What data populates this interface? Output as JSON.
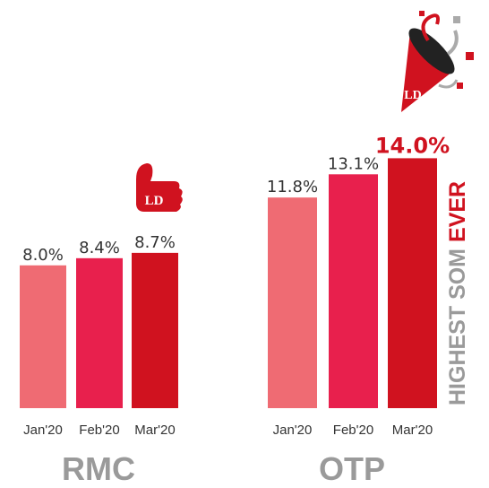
{
  "chart_data": [
    {
      "type": "bar",
      "title": "RMC",
      "categories": [
        "Jan'20",
        "Feb'20",
        "Mar'20"
      ],
      "values": [
        8.0,
        8.4,
        8.7
      ],
      "value_labels": [
        "8.0%",
        "8.4%",
        "8.7%"
      ],
      "colors": [
        "#ef6b73",
        "#e8204d",
        "#d0121f"
      ]
    },
    {
      "type": "bar",
      "title": "OTP",
      "categories": [
        "Jan'20",
        "Feb'20",
        "Mar'20"
      ],
      "values": [
        11.8,
        13.1,
        14.0
      ],
      "value_labels": [
        "11.8%",
        "13.1%",
        "14.0%"
      ],
      "colors": [
        "#ef6b73",
        "#e8204d",
        "#d0121f"
      ],
      "annotation": [
        "HIGHEST SOM",
        "EVER"
      ]
    }
  ]
}
